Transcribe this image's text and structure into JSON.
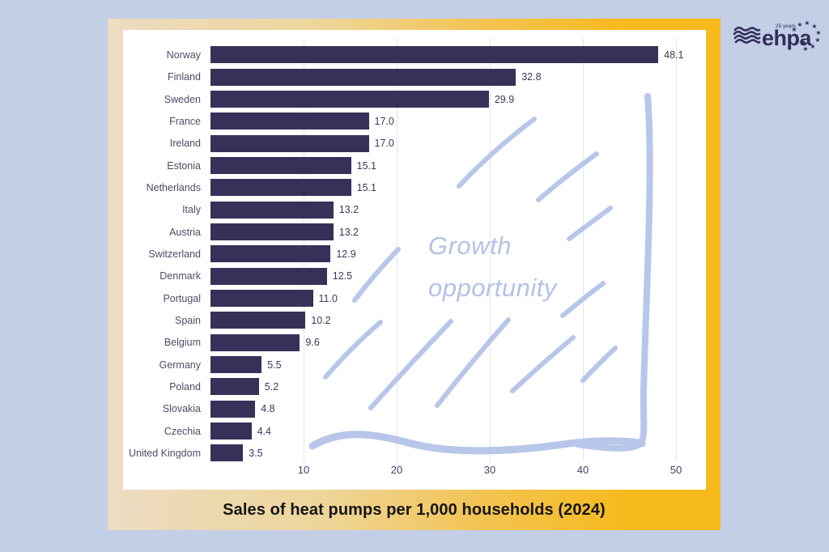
{
  "page": {
    "background_color": "#c3cee7"
  },
  "logo": {
    "name": "ehpa",
    "badge": "25 years",
    "star_glyph": "★",
    "color": "#322e5c"
  },
  "caption": "Sales of heat pumps per 1,000 households (2024)",
  "annotation": {
    "line1": "Growth",
    "line2": "opportunity",
    "color": "#b7c6e9"
  },
  "chart_data": {
    "type": "bar",
    "orientation": "horizontal",
    "title": "Sales of heat pumps per 1,000 households (2024)",
    "categories": [
      "Norway",
      "Finland",
      "Sweden",
      "France",
      "Ireland",
      "Estonia",
      "Netherlands",
      "Italy",
      "Austria",
      "Switzerland",
      "Denmark",
      "Portugal",
      "Spain",
      "Belgium",
      "Germany",
      "Poland",
      "Slovakia",
      "Czechia",
      "United Kingdom"
    ],
    "values": [
      48.1,
      32.8,
      29.9,
      17.0,
      17.0,
      15.1,
      15.1,
      13.2,
      13.2,
      12.9,
      12.5,
      11.0,
      10.2,
      9.6,
      5.5,
      5.2,
      4.8,
      4.4,
      3.5
    ],
    "value_labels": [
      "48.1",
      "32.8",
      "29.9",
      "17.0",
      "17.0",
      "15.1",
      "15.1",
      "13.2",
      "13.2",
      "12.9",
      "12.5",
      "11.0",
      "10.2",
      "9.6",
      "5.5",
      "5.2",
      "4.8",
      "4.4",
      "3.5"
    ],
    "x_ticks": [
      10,
      20,
      30,
      40,
      50
    ],
    "xlim": [
      0,
      53
    ],
    "grid": true,
    "legend": false,
    "bar_color": "#37315a",
    "annotation_text": "Growth opportunity"
  }
}
